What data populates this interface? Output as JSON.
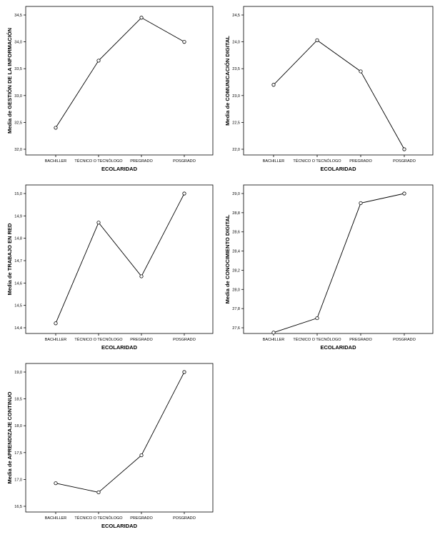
{
  "chart_data": [
    {
      "type": "line",
      "xlabel": "ECOLARIDAD",
      "ylabel": "Media de GESTIÓN DE LA INFORMACIÓN",
      "categories": [
        "BACHILLER",
        "TÉCNICO O TECNÓLOGO",
        "PREGRADO",
        "POSGRADO"
      ],
      "values": [
        32.4,
        33.65,
        34.45,
        34.0
      ],
      "yticks": [
        "32,0",
        "32,5",
        "33,0",
        "33,5",
        "34,0",
        "34,5"
      ],
      "ylim": [
        32.0,
        34.5
      ],
      "grid": false
    },
    {
      "type": "line",
      "xlabel": "ECOLARIDAD",
      "ylabel": "Media de COMUNICACIÓN DIGITAL",
      "categories": [
        "BACHILLER",
        "TÉCNICO O TECNÓLOGO",
        "PREGRADO",
        "POSGRADO"
      ],
      "values": [
        23.2,
        24.03,
        23.45,
        22.0
      ],
      "yticks": [
        "22,0",
        "22,5",
        "23,0",
        "23,5",
        "24,0",
        "24,5"
      ],
      "ylim": [
        22.0,
        24.5
      ],
      "grid": false
    },
    {
      "type": "line",
      "xlabel": "ECOLARIDAD",
      "ylabel": "Media de TRABAJO EN RED",
      "categories": [
        "BACHILLER",
        "TÉCNICO O TECNÓLOGO",
        "PREGRADO",
        "POSGRADO"
      ],
      "values": [
        14.42,
        14.87,
        14.63,
        15.0
      ],
      "yticks": [
        "14,4",
        "14,5",
        "14,6",
        "14,7",
        "14,8",
        "14,9",
        "15,0"
      ],
      "ylim": [
        14.4,
        15.0
      ],
      "grid": false
    },
    {
      "type": "line",
      "xlabel": "ECOLARIDAD",
      "ylabel": "Media de CONOCIMIENTO DIGITAL",
      "categories": [
        "BACHILLER",
        "TÉCNICO O TECNÓLOGO",
        "PREGRADO",
        "POSGRADO"
      ],
      "values": [
        27.55,
        27.7,
        28.9,
        29.0
      ],
      "yticks": [
        "27,6",
        "27,8",
        "28,0",
        "28,2",
        "28,4",
        "28,6",
        "28,8",
        "29,0"
      ],
      "ylim": [
        27.6,
        29.0
      ],
      "grid": false
    },
    {
      "type": "line",
      "xlabel": "ECOLARIDAD",
      "ylabel": "Media de APRENDIZAJE CONTINUO",
      "categories": [
        "BACHILLER",
        "TÉCNICO O TECNÓLOGO",
        "PREGRADO",
        "POSGRADO"
      ],
      "values": [
        16.93,
        16.76,
        17.45,
        19.0
      ],
      "yticks": [
        "16,5",
        "17,0",
        "17,5",
        "18,0",
        "18,5",
        "19,0"
      ],
      "ylim": [
        16.5,
        19.0
      ],
      "grid": false
    }
  ]
}
